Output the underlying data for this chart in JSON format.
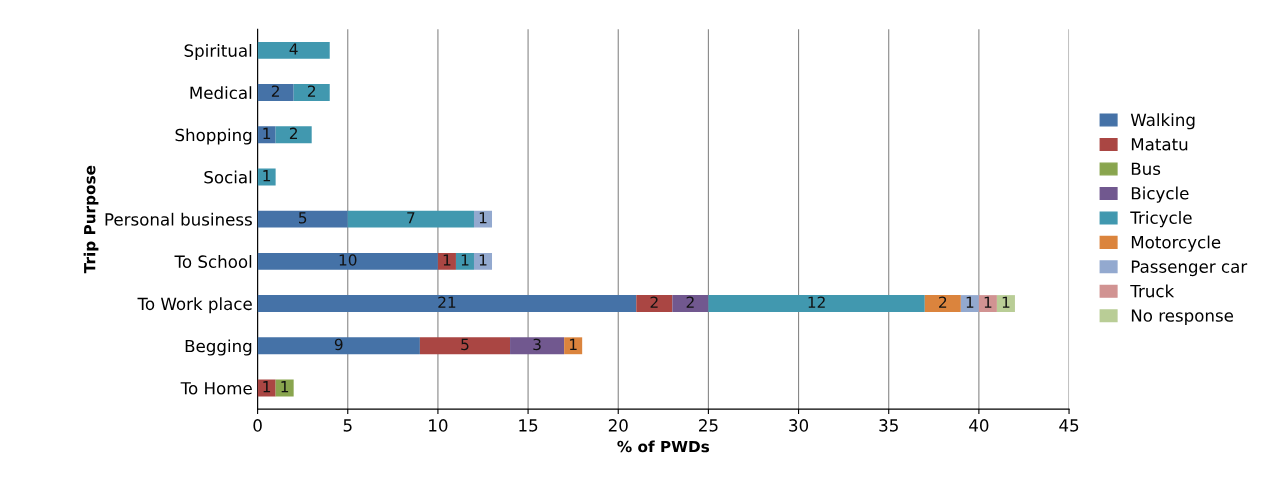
{
  "chart_data": {
    "type": "bar",
    "orientation": "horizontal",
    "stacked": true,
    "xlabel": "% of PWDs",
    "ylabel": "Trip Purpose",
    "categories": [
      "Spiritual",
      "Medical",
      "Shopping",
      "Social",
      "Personal business",
      "To School",
      "To Work place",
      "Begging",
      "To Home"
    ],
    "series": [
      {
        "name": "Walking",
        "color": "#4572a7",
        "values": [
          null,
          2,
          1,
          null,
          5,
          10,
          21,
          9,
          null
        ]
      },
      {
        "name": "Matatu",
        "color": "#aa4643",
        "values": [
          null,
          null,
          null,
          null,
          null,
          1,
          2,
          5,
          1
        ]
      },
      {
        "name": "Bus",
        "color": "#89a54e",
        "values": [
          null,
          null,
          null,
          null,
          null,
          null,
          null,
          null,
          1
        ]
      },
      {
        "name": "Bicycle",
        "color": "#71588f",
        "values": [
          null,
          null,
          null,
          null,
          null,
          null,
          2,
          3,
          null
        ]
      },
      {
        "name": "Tricycle",
        "color": "#4198af",
        "values": [
          4,
          2,
          2,
          1,
          7,
          1,
          12,
          null,
          null
        ]
      },
      {
        "name": "Motorcycle",
        "color": "#db843d",
        "values": [
          null,
          null,
          null,
          null,
          null,
          null,
          2,
          1,
          null
        ]
      },
      {
        "name": "Passenger car",
        "color": "#93a9cf",
        "values": [
          null,
          null,
          null,
          null,
          1,
          1,
          1,
          null,
          null
        ]
      },
      {
        "name": "Truck",
        "color": "#d19392",
        "values": [
          null,
          null,
          null,
          null,
          null,
          null,
          1,
          null,
          null
        ]
      },
      {
        "name": "No response",
        "color": "#b9cd96",
        "values": [
          null,
          null,
          null,
          null,
          null,
          null,
          1,
          null,
          null
        ]
      }
    ],
    "xlim": [
      0,
      45
    ],
    "xticks": [
      0,
      5,
      10,
      15,
      20,
      25,
      30,
      35,
      40,
      45
    ],
    "grid": "x",
    "legend": "right",
    "data_labels": true
  }
}
